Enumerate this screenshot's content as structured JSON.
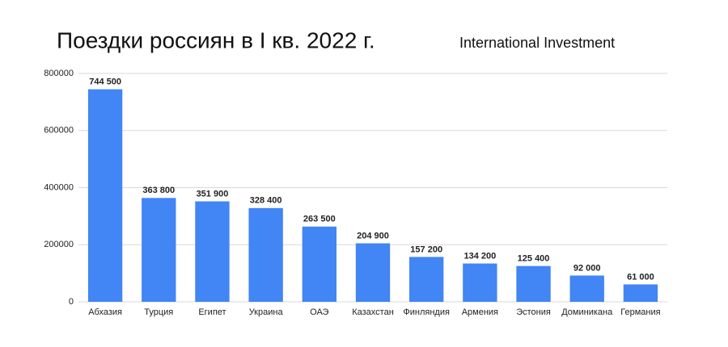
{
  "chart_data": {
    "type": "bar",
    "title": "Поездки россиян в I кв. 2022 г.",
    "subtitle": "International Investment",
    "categories": [
      "Абхазия",
      "Турция",
      "Египет",
      "Украина",
      "ОАЭ",
      "Казахстан",
      "Финляндия",
      "Армения",
      "Эстония",
      "Доминикана",
      "Германия"
    ],
    "values": [
      744500,
      363800,
      351900,
      328400,
      263500,
      204900,
      157200,
      134200,
      125400,
      92000,
      61000
    ],
    "value_labels": [
      "744 500",
      "363 800",
      "351 900",
      "328 400",
      "263 500",
      "204 900",
      "157 200",
      "134 200",
      "125 400",
      "92 000",
      "61 000"
    ],
    "color": "#4285f4",
    "ylim": [
      0,
      800000
    ],
    "yticks": [
      0,
      200000,
      400000,
      600000,
      800000
    ],
    "grid": true
  }
}
